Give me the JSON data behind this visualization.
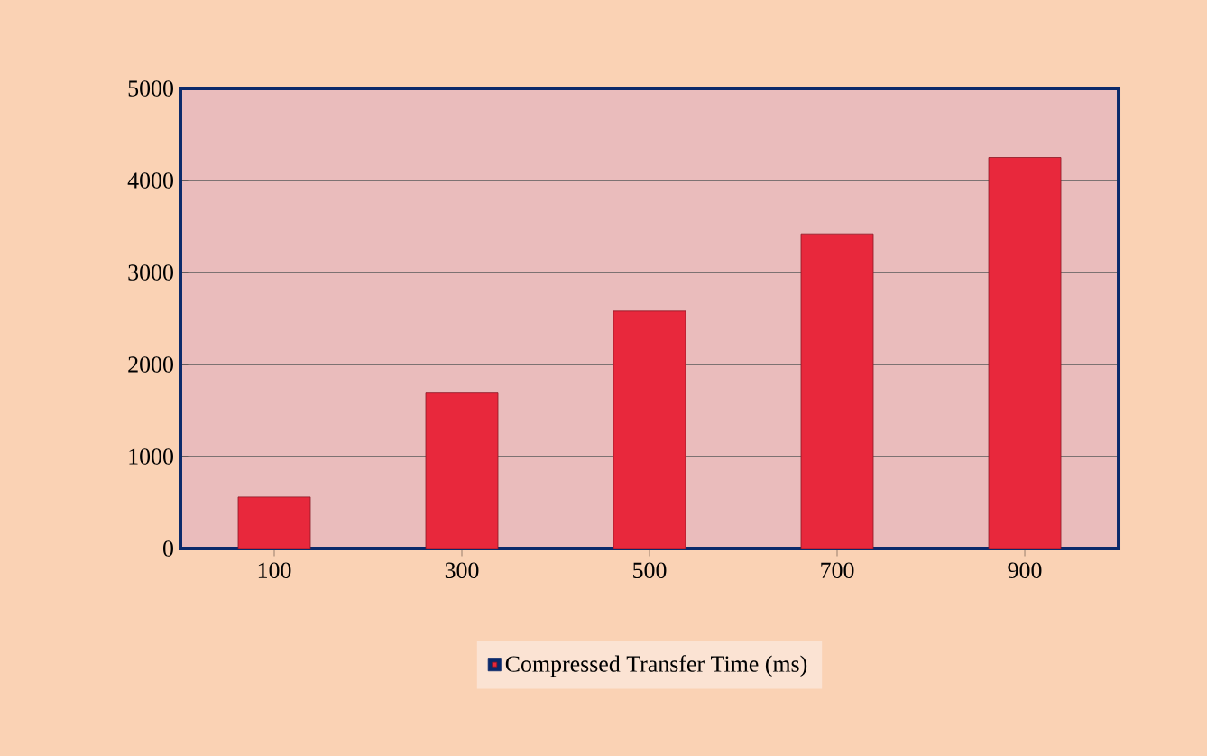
{
  "chart_data": {
    "type": "bar",
    "categories": [
      "100",
      "300",
      "500",
      "700",
      "900"
    ],
    "series": [
      {
        "name": "Compressed Transfer Time (ms)",
        "color": "#e8283c",
        "values": [
          560,
          1690,
          2580,
          3420,
          4250
        ]
      }
    ],
    "ylim": [
      0,
      5000
    ],
    "yticks": [
      0,
      1000,
      2000,
      3000,
      4000,
      5000
    ],
    "grid": "y",
    "legend": "bottom"
  }
}
